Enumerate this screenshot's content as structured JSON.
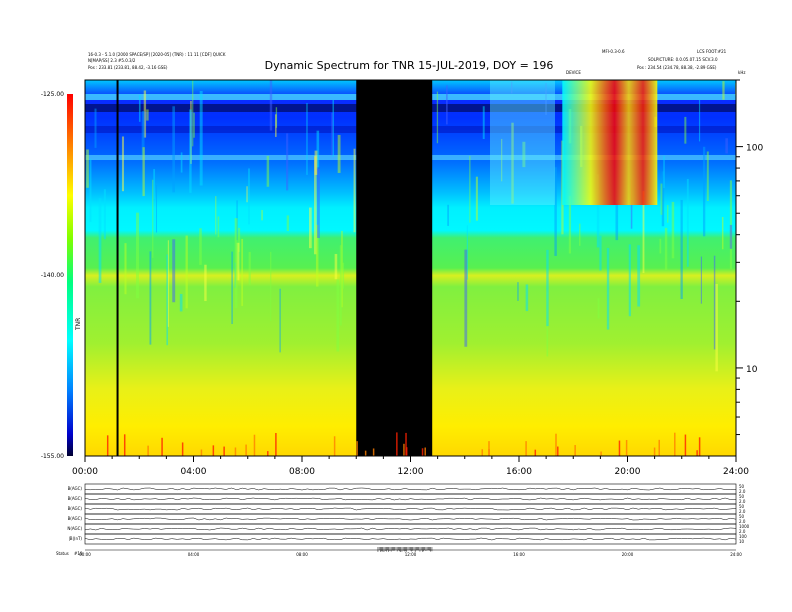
{
  "header": {
    "left_line1": "16-0.3 - 5.1.0 [2000 SPACE/SP] [2020-05] (TNR) : 11 11 [CDF] QUICK",
    "left_line2": "N[MAP/SS] 2.3 #5.0.3/2",
    "left_line3": "Pos : 233.81 (233.81, 88.42, -3.16 GSE)",
    "right_line0": "MFI-0.3-0.6",
    "right_line0b": "LCS FOOT:#21",
    "right_line1": "SOLPICTURE: 0.0.05.07.15 SCV.3.0",
    "right_line2": "Pos : 234.54 (234.78, 88.38, -2.89 GSE)",
    "top_marker": "DEVICE",
    "top_right_small": "kHz"
  },
  "chart_data": {
    "type": "heatmap",
    "title": "Dynamic Spectrum for TNR 15-JUL-2019, DOY = 196",
    "x_tick_labels": [
      "00:00",
      "04:00",
      "08:00",
      "12:00",
      "16:00",
      "20:00",
      "24:00"
    ],
    "x_ticks_hours": [
      0,
      4,
      8,
      12,
      16,
      20,
      24
    ],
    "xlim_hours": [
      0,
      24
    ],
    "y_scale": "log",
    "ylim": [
      4,
      200
    ],
    "y_tick_labels": [
      "10",
      "100"
    ],
    "y_ticks": [
      10,
      100
    ],
    "colorbar": {
      "label": "TNR",
      "tick_labels": [
        "-125.00",
        "-140.00",
        "-155.00"
      ],
      "tick_values": [
        -125,
        -140,
        -155
      ],
      "range": [
        -155,
        -125
      ],
      "colors": [
        "#000000",
        "#0000cc",
        "#0080ff",
        "#00ffff",
        "#00ff80",
        "#80ff00",
        "#ffff00",
        "#ff8000",
        "#ff0000"
      ]
    },
    "data_gap_hours": [
      10.0,
      12.8
    ],
    "vertical_line_hour": 1.2,
    "bands": [
      {
        "name": "blue_top",
        "color": "#1a3cff"
      },
      {
        "name": "cyan_mid",
        "color": "#00e8ff"
      },
      {
        "name": "green",
        "color": "#5cf060"
      },
      {
        "name": "yellow_green",
        "color": "#c8f020"
      },
      {
        "name": "yellow",
        "color": "#ffee00"
      }
    ],
    "burst_hours": [
      15.2,
      20.0
    ],
    "panels": [
      {
        "label": "B(AGC)",
        "right": "2.0"
      },
      {
        "label": "B(AGC)",
        "right": "2.0"
      },
      {
        "label": "B(AGC)",
        "right": "2.0"
      },
      {
        "label": "B(AGC)",
        "right": "2.0"
      },
      {
        "label": "N(AGC)",
        "right": "2.0"
      },
      {
        "label": "|B|(nT)",
        "right": "10"
      }
    ],
    "panel_right_top": [
      "50",
      "50",
      "50",
      "50",
      "1000",
      "100"
    ],
    "footer_label": "Status",
    "footer_value": "#10"
  }
}
